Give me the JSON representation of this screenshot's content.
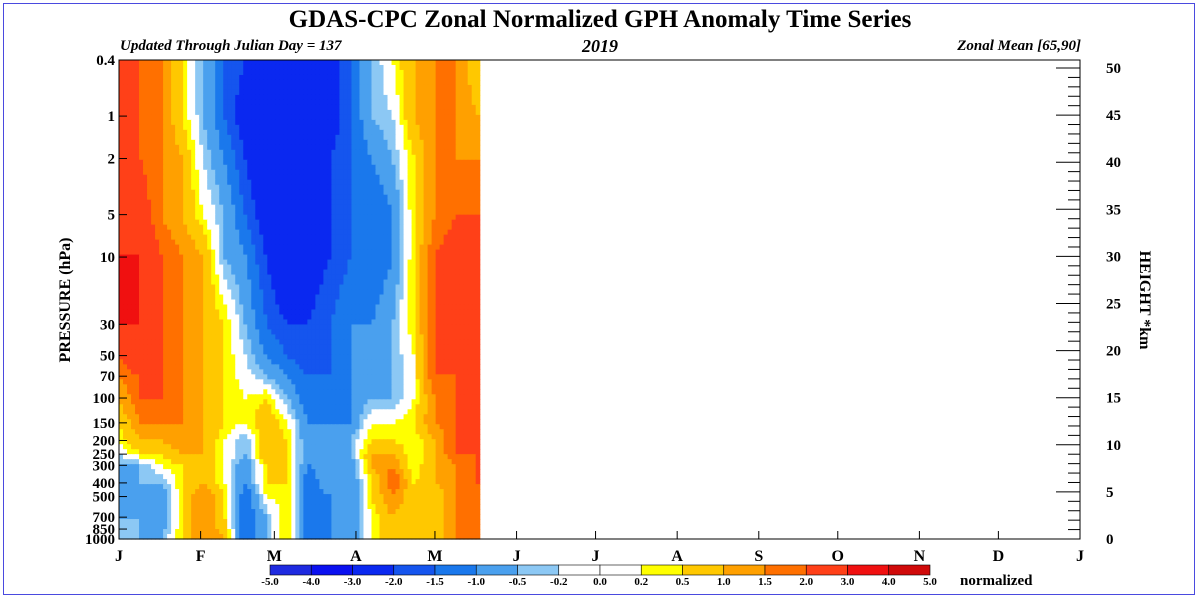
{
  "header": {
    "title": "GDAS-CPC Zonal Normalized GPH Anomaly Time Series",
    "updated": "Updated Through Julian Day = 137",
    "year": "2019",
    "zonal_mean": "Zonal Mean [65,90]"
  },
  "chart_data": {
    "type": "heatmap",
    "title": "GDAS-CPC Zonal Normalized GPH Anomaly Time Series",
    "ylabel_left": "PRESSURE (hPa)",
    "ylabel_right": "HEIGHT *km",
    "y_scale": "log",
    "ylim_hpa": [
      1000,
      0.4
    ],
    "left_ticks": [
      "0.4",
      "1",
      "2",
      "5",
      "10",
      "30",
      "50",
      "70",
      "100",
      "150",
      "200",
      "250",
      "300",
      "400",
      "500",
      "700",
      "850",
      "1000"
    ],
    "left_tick_values": [
      0.4,
      1,
      2,
      5,
      10,
      30,
      50,
      70,
      100,
      150,
      200,
      250,
      300,
      400,
      500,
      700,
      850,
      1000
    ],
    "right_ticks": [
      "50",
      "45",
      "40",
      "35",
      "30",
      "25",
      "20",
      "15",
      "10",
      "5",
      "0"
    ],
    "right_tick_values": [
      50,
      45,
      40,
      35,
      30,
      25,
      20,
      15,
      10,
      5,
      0
    ],
    "x_ticks": [
      "J",
      "F",
      "M",
      "A",
      "M",
      "J",
      "J",
      "A",
      "S",
      "O",
      "N",
      "D",
      "J"
    ],
    "x_tick_days": [
      1,
      32,
      60,
      91,
      121,
      152,
      182,
      213,
      244,
      274,
      305,
      335,
      366
    ],
    "xlim_days": [
      1,
      366
    ],
    "data_through_day": 137,
    "colorbar": {
      "labels": [
        "-5.0",
        "-4.0",
        "-3.0",
        "-2.0",
        "-1.5",
        "-1.0",
        "-0.5",
        "-0.2",
        "0.0",
        "0.2",
        "0.5",
        "1.0",
        "1.5",
        "2.0",
        "3.0",
        "4.0",
        "5.0"
      ],
      "colors": [
        "#1e2ae0",
        "#0a10f0",
        "#0a28f0",
        "#1555ee",
        "#1a78ec",
        "#4aa0ee",
        "#8cc8f4",
        "#ffffff",
        "#ffffff",
        "#ffff00",
        "#ffc800",
        "#ffa000",
        "#ff7000",
        "#ff4018",
        "#f01010",
        "#d00a0a"
      ],
      "unit": "normalized"
    },
    "levels_hpa": [
      0.4,
      1,
      2,
      5,
      10,
      30,
      50,
      70,
      100,
      150,
      200,
      250,
      300,
      400,
      500,
      700,
      1000
    ],
    "days": [
      1,
      9,
      17,
      25,
      33,
      41,
      49,
      57,
      65,
      73,
      81,
      89,
      97,
      105,
      113,
      121,
      129,
      137
    ],
    "values": [
      [
        3.0,
        2.0,
        1.5,
        0.5,
        -0.5,
        -1.5,
        -2.0,
        -3.0,
        -3.0,
        -3.0,
        -2.5,
        -1.5,
        -0.5,
        0.2,
        1.0,
        1.5,
        1.5,
        0.5
      ],
      [
        3.0,
        2.0,
        1.5,
        0.5,
        -0.5,
        -1.5,
        -2.5,
        -3.0,
        -3.0,
        -3.0,
        -2.5,
        -1.5,
        -0.5,
        -0.2,
        1.0,
        1.5,
        1.5,
        1.0
      ],
      [
        3.0,
        2.0,
        1.5,
        1.0,
        -0.2,
        -1.0,
        -2.0,
        -3.0,
        -3.0,
        -3.0,
        -2.0,
        -1.5,
        -1.0,
        -0.5,
        0.5,
        1.5,
        1.5,
        1.5
      ],
      [
        3.0,
        2.5,
        1.5,
        1.0,
        0.2,
        -0.5,
        -1.5,
        -2.5,
        -3.0,
        -2.5,
        -2.0,
        -1.5,
        -1.5,
        -1.0,
        0.5,
        1.5,
        2.0,
        2.0
      ],
      [
        3.0,
        3.0,
        2.0,
        1.5,
        1.0,
        -0.5,
        -1.0,
        -2.0,
        -3.0,
        -2.5,
        -2.0,
        -1.5,
        -1.5,
        -1.0,
        0.5,
        2.0,
        2.5,
        2.0
      ],
      [
        3.0,
        3.0,
        2.0,
        1.5,
        1.0,
        0.5,
        -0.5,
        -1.5,
        -2.0,
        -2.0,
        -1.5,
        -1.0,
        -1.0,
        -0.5,
        0.5,
        2.0,
        3.0,
        2.0
      ],
      [
        2.0,
        3.0,
        2.0,
        1.5,
        1.0,
        0.5,
        -0.2,
        -1.0,
        -1.5,
        -2.0,
        -1.5,
        -1.0,
        -1.0,
        -0.5,
        0.2,
        2.0,
        2.0,
        2.0
      ],
      [
        1.5,
        2.0,
        2.0,
        1.5,
        1.0,
        0.5,
        0.0,
        -0.5,
        -1.0,
        -1.5,
        -1.5,
        -1.0,
        -1.0,
        -0.5,
        0.2,
        2.0,
        2.0,
        2.0
      ],
      [
        1.0,
        2.0,
        2.0,
        1.5,
        1.0,
        0.5,
        0.2,
        0.5,
        -0.5,
        -1.5,
        -1.5,
        -1.0,
        -0.5,
        -0.5,
        0.2,
        1.5,
        2.0,
        2.0
      ],
      [
        0.5,
        1.5,
        1.5,
        1.5,
        1.0,
        0.5,
        0.2,
        1.0,
        0.2,
        -1.0,
        -1.0,
        -1.0,
        0.2,
        0.2,
        0.5,
        1.5,
        2.0,
        2.0
      ],
      [
        0.2,
        1.0,
        1.0,
        1.5,
        1.0,
        0.2,
        -0.5,
        1.0,
        0.5,
        -1.0,
        -1.0,
        -0.5,
        0.5,
        0.5,
        0.2,
        1.0,
        2.0,
        2.0
      ],
      [
        -0.2,
        0.5,
        0.5,
        1.0,
        1.0,
        0.2,
        -0.5,
        1.0,
        0.5,
        -1.0,
        -0.5,
        -0.5,
        1.0,
        1.0,
        0.2,
        1.0,
        2.0,
        2.0
      ],
      [
        -0.5,
        -0.5,
        0.2,
        0.5,
        1.0,
        0.2,
        -1.0,
        0.5,
        0.5,
        -1.0,
        -0.5,
        -1.0,
        1.0,
        1.5,
        0.2,
        1.0,
        1.5,
        2.0
      ],
      [
        -1.0,
        -0.5,
        -0.5,
        0.5,
        1.0,
        0.2,
        -1.0,
        0.5,
        0.5,
        -1.5,
        -0.5,
        -1.0,
        0.5,
        2.0,
        0.5,
        1.0,
        1.5,
        2.0
      ],
      [
        -1.0,
        -1.0,
        -1.0,
        0.5,
        1.5,
        0.5,
        -1.5,
        0.2,
        0.5,
        -1.5,
        -1.0,
        -1.0,
        0.5,
        1.5,
        0.5,
        0.5,
        1.5,
        1.5
      ],
      [
        -0.5,
        -0.5,
        -1.0,
        0.5,
        1.5,
        0.5,
        -1.5,
        -0.5,
        0.5,
        -1.5,
        -1.0,
        -1.0,
        0.2,
        1.0,
        0.5,
        0.5,
        1.5,
        1.5
      ],
      [
        -0.5,
        -0.5,
        -0.5,
        0.5,
        1.5,
        1.0,
        -1.5,
        -0.5,
        0.5,
        -1.5,
        -1.0,
        -1.0,
        0.2,
        1.0,
        0.5,
        0.5,
        1.5,
        1.5
      ]
    ]
  }
}
